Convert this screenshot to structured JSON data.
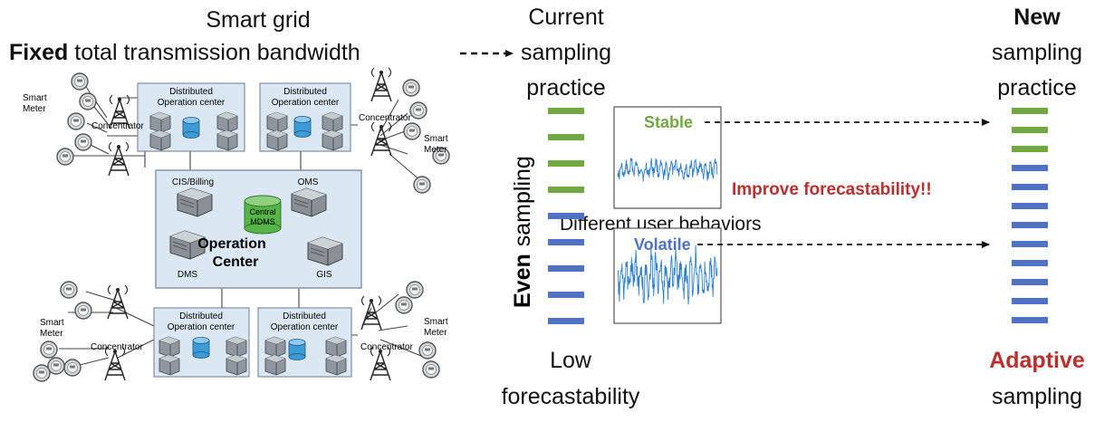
{
  "colors": {
    "green": "#72a844",
    "blue": "#4f72c4",
    "red": "#b8312f",
    "panel": "#dbe8f4",
    "panel_border": "#7f8ea3",
    "mdms": "#57b447",
    "disk": "#3c9bd6",
    "signal": "#2f80c9"
  },
  "header": {
    "grid_title": "Smart grid",
    "fixed_word": "Fixed",
    "fixed_rest": "total transmission bandwidth",
    "current_line1": "Current",
    "current_line2": "sampling",
    "current_line3": "practice",
    "new_word": "New",
    "new_line2": "sampling",
    "new_line3": "practice"
  },
  "grid": {
    "dist_center_line1": "Distributed",
    "dist_center_line2": "Operation center",
    "smart_meter_line1": "Smart",
    "smart_meter_line2": "Meter",
    "concentrator": "Concentrator",
    "cis_billing": "CIS/Billing",
    "oms": "OMS",
    "dms": "DMS",
    "gis": "GIS",
    "mdms_line1": "Central",
    "mdms_line2": "MDMS",
    "op_center_line1": "Operation",
    "op_center_line2": "Center"
  },
  "left_axis": {
    "even_word": "Even",
    "sampling_word": "sampling"
  },
  "middle": {
    "stable_label": "Stable",
    "volatile_label": "Volatile",
    "behaviors_label": "Different user behaviors",
    "improve_label": "Improve forecastability!!",
    "stable_plot": {
      "type": "line",
      "xlim": [
        0,
        700
      ],
      "ylim": [
        0,
        2.5
      ],
      "amplitude": "low",
      "series_color": "#2f80c9"
    },
    "volatile_plot": {
      "type": "line",
      "xlim": [
        0,
        700
      ],
      "ylim": [
        0,
        6
      ],
      "amplitude": "high",
      "series_color": "#2f80c9"
    }
  },
  "footer": {
    "low_line1": "Low",
    "low_line2": "forecastability",
    "adaptive_word": "Adaptive",
    "adaptive_line2": "sampling"
  },
  "sampling": {
    "current": [
      "green",
      "green",
      "green",
      "green",
      "blue",
      "blue",
      "blue",
      "blue",
      "blue"
    ],
    "new": [
      "green",
      "green",
      "green",
      "blue",
      "blue",
      "blue",
      "blue",
      "blue",
      "blue",
      "blue",
      "blue",
      "blue"
    ]
  }
}
